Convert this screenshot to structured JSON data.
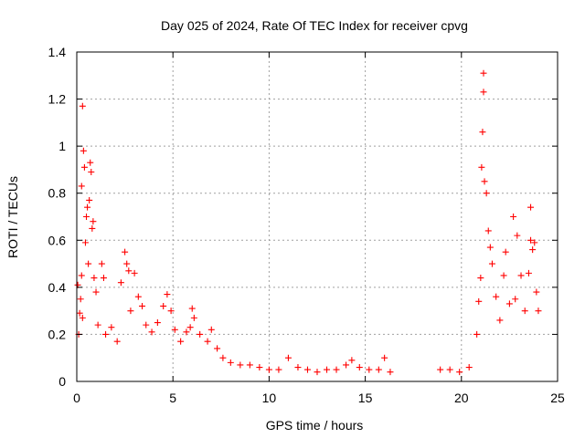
{
  "chart_data": {
    "type": "scatter",
    "title": "Day 025 of 2024, Rate Of TEC Index for receiver cpvg",
    "xlabel": "GPS time / hours",
    "ylabel": "ROTI / TECUs",
    "xlim": [
      0,
      25
    ],
    "ylim": [
      0,
      1.4
    ],
    "xticks": [
      0,
      5,
      10,
      15,
      20,
      25
    ],
    "yticks": [
      0,
      0.2,
      0.4,
      0.6,
      0.8,
      1,
      1.2,
      1.4
    ],
    "xtick_labels": [
      "0",
      "5",
      "10",
      "15",
      "20",
      "25"
    ],
    "ytick_labels": [
      "0",
      "0.2",
      "0.4",
      "0.6",
      "0.8",
      "1",
      "1.2",
      "1.4"
    ],
    "grid": true,
    "marker": "+",
    "color": "#ff0000",
    "series": [
      {
        "name": "ROTI",
        "points": [
          [
            0.05,
            0.41
          ],
          [
            0.1,
            0.2
          ],
          [
            0.15,
            0.29
          ],
          [
            0.2,
            0.35
          ],
          [
            0.25,
            0.83
          ],
          [
            0.25,
            0.45
          ],
          [
            0.3,
            1.17
          ],
          [
            0.3,
            0.27
          ],
          [
            0.35,
            0.98
          ],
          [
            0.4,
            0.91
          ],
          [
            0.45,
            0.59
          ],
          [
            0.5,
            0.7
          ],
          [
            0.55,
            0.74
          ],
          [
            0.6,
            0.5
          ],
          [
            0.65,
            0.77
          ],
          [
            0.7,
            0.93
          ],
          [
            0.75,
            0.89
          ],
          [
            0.8,
            0.65
          ],
          [
            0.85,
            0.68
          ],
          [
            0.9,
            0.44
          ],
          [
            1.0,
            0.38
          ],
          [
            1.1,
            0.24
          ],
          [
            1.3,
            0.5
          ],
          [
            1.4,
            0.44
          ],
          [
            1.5,
            0.2
          ],
          [
            1.8,
            0.23
          ],
          [
            2.1,
            0.17
          ],
          [
            2.3,
            0.42
          ],
          [
            2.5,
            0.55
          ],
          [
            2.6,
            0.5
          ],
          [
            2.7,
            0.47
          ],
          [
            2.8,
            0.3
          ],
          [
            3.0,
            0.46
          ],
          [
            3.2,
            0.36
          ],
          [
            3.4,
            0.32
          ],
          [
            3.6,
            0.24
          ],
          [
            3.9,
            0.21
          ],
          [
            4.2,
            0.25
          ],
          [
            4.5,
            0.32
          ],
          [
            4.7,
            0.37
          ],
          [
            4.9,
            0.3
          ],
          [
            5.1,
            0.22
          ],
          [
            5.4,
            0.17
          ],
          [
            5.7,
            0.21
          ],
          [
            5.9,
            0.23
          ],
          [
            6.0,
            0.31
          ],
          [
            6.1,
            0.27
          ],
          [
            6.4,
            0.2
          ],
          [
            6.8,
            0.17
          ],
          [
            7.0,
            0.22
          ],
          [
            7.3,
            0.14
          ],
          [
            7.6,
            0.1
          ],
          [
            8.0,
            0.08
          ],
          [
            8.5,
            0.07
          ],
          [
            9.0,
            0.07
          ],
          [
            9.5,
            0.06
          ],
          [
            10.0,
            0.05
          ],
          [
            10.5,
            0.05
          ],
          [
            11.0,
            0.1
          ],
          [
            11.5,
            0.06
          ],
          [
            12.0,
            0.05
          ],
          [
            12.5,
            0.04
          ],
          [
            13.0,
            0.05
          ],
          [
            13.5,
            0.05
          ],
          [
            14.0,
            0.07
          ],
          [
            14.3,
            0.09
          ],
          [
            14.7,
            0.06
          ],
          [
            15.2,
            0.05
          ],
          [
            15.7,
            0.05
          ],
          [
            16.0,
            0.1
          ],
          [
            16.3,
            0.04
          ],
          [
            18.9,
            0.05
          ],
          [
            19.4,
            0.05
          ],
          [
            19.9,
            0.04
          ],
          [
            20.4,
            0.06
          ],
          [
            20.8,
            0.2
          ],
          [
            20.9,
            0.34
          ],
          [
            21.0,
            0.44
          ],
          [
            21.05,
            0.91
          ],
          [
            21.1,
            1.06
          ],
          [
            21.15,
            1.23
          ],
          [
            21.15,
            1.31
          ],
          [
            21.2,
            0.85
          ],
          [
            21.3,
            0.8
          ],
          [
            21.4,
            0.64
          ],
          [
            21.5,
            0.57
          ],
          [
            21.6,
            0.5
          ],
          [
            21.8,
            0.36
          ],
          [
            22.0,
            0.26
          ],
          [
            22.2,
            0.45
          ],
          [
            22.3,
            0.55
          ],
          [
            22.5,
            0.33
          ],
          [
            22.7,
            0.7
          ],
          [
            22.8,
            0.35
          ],
          [
            22.9,
            0.62
          ],
          [
            23.1,
            0.45
          ],
          [
            23.3,
            0.3
          ],
          [
            23.5,
            0.46
          ],
          [
            23.6,
            0.6
          ],
          [
            23.6,
            0.74
          ],
          [
            23.7,
            0.56
          ],
          [
            23.8,
            0.59
          ],
          [
            23.9,
            0.38
          ],
          [
            24.0,
            0.3
          ]
        ]
      }
    ]
  }
}
